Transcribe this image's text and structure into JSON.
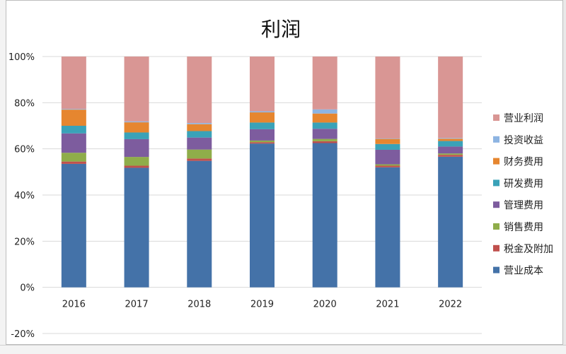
{
  "chart_data": {
    "type": "bar",
    "stacked": true,
    "percent": true,
    "title": "利润",
    "categories": [
      "2016",
      "2017",
      "2018",
      "2019",
      "2020",
      "2021",
      "2022"
    ],
    "ylim": [
      -20,
      100
    ],
    "yticks": [
      "-20%",
      "0%",
      "20%",
      "40%",
      "60%",
      "80%",
      "100%"
    ],
    "ytick_values": [
      -20,
      0,
      20,
      40,
      60,
      80,
      100
    ],
    "grid": true,
    "legend_position": "right",
    "series": [
      {
        "name": "营业成本",
        "color": "#4472a8",
        "values": [
          53.5,
          51.8,
          54.8,
          62.3,
          62.5,
          52.0,
          56.6
        ]
      },
      {
        "name": "税金及附加",
        "color": "#c0504d",
        "values": [
          1.0,
          0.9,
          1.0,
          0.6,
          0.8,
          0.7,
          0.8
        ]
      },
      {
        "name": "销售费用",
        "color": "#8fad4a",
        "values": [
          3.8,
          3.8,
          3.9,
          0.7,
          1.0,
          0.6,
          0.6
        ]
      },
      {
        "name": "管理费用",
        "color": "#7d5c9e",
        "values": [
          8.4,
          7.7,
          5.2,
          4.9,
          4.4,
          6.3,
          3.0
        ]
      },
      {
        "name": "研发费用",
        "color": "#3aa2b8",
        "values": [
          3.3,
          2.9,
          2.8,
          2.9,
          2.7,
          2.5,
          2.4
        ]
      },
      {
        "name": "财务费用",
        "color": "#e6862f",
        "values": [
          7.0,
          4.4,
          3.0,
          4.4,
          3.9,
          2.2,
          1.0
        ]
      },
      {
        "name": "投资收益",
        "color": "#8db4e2",
        "values": [
          0.3,
          0.4,
          0.5,
          0.5,
          1.8,
          0.2,
          0.3
        ]
      },
      {
        "name": "营业利润",
        "color": "#d99694",
        "values": [
          22.7,
          28.1,
          28.8,
          23.7,
          22.9,
          35.5,
          35.3
        ]
      }
    ]
  }
}
